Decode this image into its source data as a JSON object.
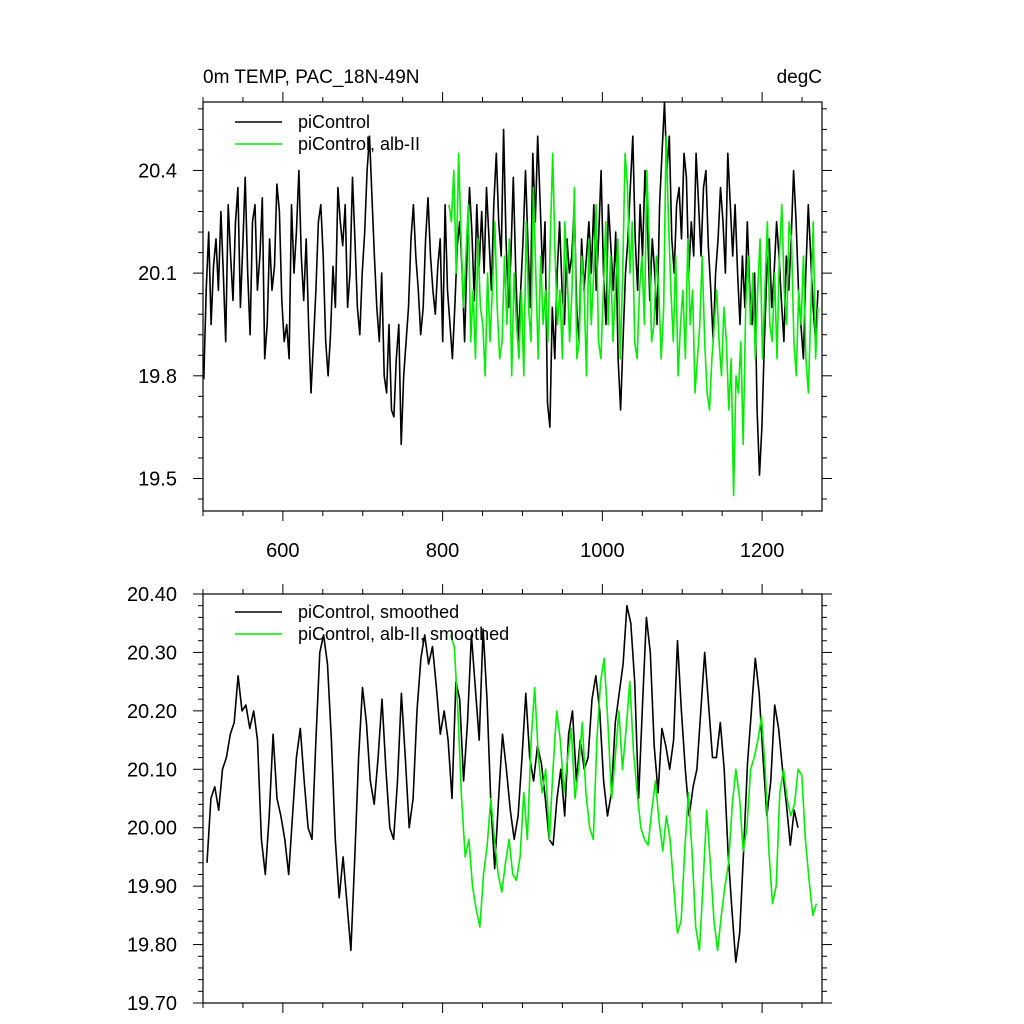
{
  "chart_data": [
    {
      "type": "line",
      "title": "0m TEMP, PAC_18N-49N",
      "units": "degC",
      "xlim": [
        500,
        1275
      ],
      "ylim": [
        19.405,
        20.6
      ],
      "xticks": [
        600,
        800,
        1000,
        1200
      ],
      "xtick_labels": [
        "600",
        "800",
        "1000",
        "1200"
      ],
      "yticks": [
        19.5,
        19.8,
        20.1,
        20.4
      ],
      "ytick_labels": [
        "19.5",
        "19.8",
        "20.1",
        "20.4"
      ],
      "legend_position": "top-left",
      "grid": false,
      "series": [
        {
          "name": "piControl",
          "color": "#000000",
          "x_range": [
            501,
            1270
          ],
          "values": [
            19.79,
            20.05,
            20.22,
            19.95,
            20.12,
            20.2,
            20.05,
            20.28,
            20.1,
            19.9,
            20.3,
            20.15,
            20.02,
            20.25,
            20.35,
            20.0,
            20.18,
            20.38,
            20.1,
            19.92,
            20.25,
            20.3,
            20.05,
            20.15,
            20.32,
            19.85,
            19.95,
            20.2,
            20.05,
            20.12,
            20.36,
            20.28,
            20.02,
            19.9,
            19.95,
            19.85,
            20.3,
            20.1,
            20.22,
            20.4,
            20.15,
            20.02,
            20.2,
            19.95,
            19.75,
            19.9,
            20.05,
            20.25,
            20.3,
            20.15,
            19.9,
            19.8,
            19.92,
            20.12,
            20.0,
            20.35,
            20.25,
            20.18,
            20.3,
            20.0,
            20.1,
            20.38,
            20.2,
            20.0,
            19.92,
            20.1,
            20.22,
            20.4,
            20.5,
            20.32,
            20.15,
            20.0,
            19.9,
            20.1,
            19.8,
            19.75,
            19.95,
            19.7,
            19.68,
            19.85,
            19.95,
            19.6,
            19.8,
            19.9,
            20.0,
            20.2,
            20.3,
            20.15,
            20.05,
            19.92,
            20.0,
            20.2,
            20.32,
            20.15,
            20.05,
            19.98,
            20.12,
            20.2,
            19.9,
            20.3,
            20.05,
            19.95,
            19.85,
            20.0,
            20.18,
            20.25,
            20.1,
            19.9,
            20.15,
            20.35,
            20.22,
            20.02,
            20.3,
            20.12,
            20.28,
            20.1,
            20.35,
            20.2,
            20.05,
            20.3,
            20.45,
            20.25,
            20.15,
            20.52,
            20.2,
            20.0,
            20.15,
            20.38,
            20.1,
            19.9,
            20.05,
            20.2,
            20.4,
            20.18,
            20.0,
            20.45,
            20.25,
            20.5,
            20.3,
            20.1,
            20.25,
            19.72,
            19.65,
            20.0,
            19.85,
            20.1,
            20.25,
            20.05,
            19.95,
            20.2,
            20.1,
            20.15,
            20.3,
            20.0,
            19.9,
            20.2,
            20.05,
            20.15,
            20.25,
            20.1,
            20.3,
            20.05,
            20.2,
            20.4,
            20.1,
            19.95,
            20.3,
            20.18,
            20.05,
            20.22,
            19.85,
            19.7,
            19.9,
            20.1,
            20.2,
            20.35,
            20.5,
            20.2,
            20.05,
            20.3,
            20.15,
            20.4,
            20.25,
            20.02,
            20.2,
            20.1,
            19.95,
            20.3,
            20.45,
            20.6,
            20.4,
            20.5,
            20.2,
            20.1,
            20.3,
            20.35,
            20.2,
            20.45,
            20.38,
            20.1,
            20.25,
            20.15,
            20.45,
            20.3,
            20.15,
            20.35,
            20.4,
            20.18,
            20.05,
            19.9,
            20.1,
            20.2,
            20.35,
            20.25,
            20.1,
            20.45,
            20.3,
            20.15,
            20.3,
            20.1,
            19.95,
            20.15,
            20.0,
            20.25,
            20.05,
            19.95,
            20.1,
            19.7,
            19.51,
            19.65,
            19.9,
            20.1,
            20.2,
            20.0,
            20.1,
            20.25,
            20.15,
            20.02,
            19.9,
            20.15,
            20.05,
            20.2,
            20.4,
            20.25,
            20.05,
            19.95,
            19.85,
            20.1,
            20.3,
            20.15,
            20.0,
            19.9,
            20.05
          ]
        },
        {
          "name": "piControl, alb-II",
          "color": "#00ee00",
          "x_range": [
            808,
            1270
          ],
          "values": [
            20.3,
            20.25,
            20.4,
            20.1,
            20.45,
            20.2,
            20.0,
            20.15,
            20.3,
            19.9,
            20.05,
            19.85,
            20.2,
            20.0,
            19.95,
            19.8,
            20.1,
            19.9,
            20.05,
            20.25,
            20.0,
            19.85,
            19.9,
            20.15,
            19.95,
            20.2,
            19.8,
            20.1,
            19.95,
            19.85,
            20.05,
            19.8,
            20.25,
            20.0,
            19.9,
            20.35,
            20.1,
            19.85,
            20.15,
            19.95,
            20.05,
            19.9,
            20.2,
            20.45,
            20.15,
            19.95,
            20.05,
            19.85,
            20.25,
            20.1,
            19.9,
            20.05,
            20.35,
            19.85,
            19.9,
            20.15,
            20.05,
            19.8,
            20.2,
            19.95,
            20.1,
            20.3,
            19.9,
            19.85,
            20.05,
            20.25,
            19.95,
            20.15,
            19.9,
            20.05,
            20.2,
            19.85,
            20.1,
            20.45,
            20.35,
            20.1,
            20.25,
            19.9,
            19.85,
            20.05,
            20.15,
            19.95,
            20.4,
            20.2,
            19.9,
            19.95,
            20.15,
            20.05,
            19.85,
            20.0,
            20.5,
            20.25,
            20.05,
            19.9,
            20.15,
            19.8,
            19.95,
            20.05,
            19.85,
            20.2,
            19.95,
            20.05,
            19.75,
            19.85,
            19.95,
            20.15,
            19.9,
            19.75,
            19.7,
            19.85,
            19.95,
            20.05,
            19.9,
            19.8,
            20.0,
            19.9,
            19.7,
            19.85,
            19.45,
            19.8,
            19.75,
            19.9,
            19.6,
            20.0,
            20.15,
            19.95,
            20.1,
            19.85,
            20.05,
            20.2,
            19.85,
            20.05,
            20.25,
            19.95,
            19.9,
            20.1,
            19.85,
            20.15,
            20.3,
            20.05,
            19.95,
            20.25,
            20.2,
            19.9,
            19.8,
            20.05,
            19.95,
            20.15,
            19.85,
            19.75,
            20.0,
            20.25,
            19.85,
            20.0
          ]
        }
      ]
    },
    {
      "type": "line",
      "xlim": [
        500,
        1275
      ],
      "ylim": [
        19.7,
        20.4
      ],
      "yticks": [
        19.7,
        19.8,
        19.9,
        20.0,
        20.1,
        20.2,
        20.3,
        20.4
      ],
      "ytick_labels": [
        "19.70",
        "19.80",
        "19.90",
        "20.00",
        "20.10",
        "20.20",
        "20.30",
        "20.40"
      ],
      "xticks": [
        600,
        800,
        1000,
        1200
      ],
      "legend_position": "top-left",
      "grid": false,
      "series": [
        {
          "name": "piControl, smoothed",
          "color": "#000000",
          "x_range": [
            505,
            1245
          ],
          "values": [
            19.94,
            20.05,
            20.07,
            20.03,
            20.1,
            20.12,
            20.16,
            20.18,
            20.26,
            20.2,
            20.21,
            20.17,
            20.2,
            20.15,
            19.98,
            19.92,
            20.02,
            20.16,
            20.05,
            20.02,
            19.98,
            19.92,
            20.02,
            20.12,
            20.17,
            20.08,
            20.0,
            19.98,
            20.15,
            20.3,
            20.33,
            20.28,
            20.15,
            19.98,
            19.88,
            19.95,
            19.87,
            19.79,
            19.95,
            20.12,
            20.24,
            20.18,
            20.08,
            20.04,
            20.12,
            20.22,
            20.1,
            20.0,
            19.98,
            20.08,
            20.23,
            20.12,
            20.0,
            20.05,
            20.2,
            20.29,
            20.33,
            20.28,
            20.31,
            20.24,
            20.16,
            20.2,
            20.15,
            20.05,
            20.25,
            20.22,
            20.08,
            20.18,
            20.33,
            20.24,
            20.15,
            20.34,
            20.22,
            20.04,
            19.93,
            20.05,
            20.16,
            20.1,
            20.03,
            19.98,
            20.02,
            20.12,
            20.23,
            20.12,
            20.08,
            20.14,
            20.11,
            20.05,
            19.98,
            19.97,
            20.05,
            20.1,
            20.02,
            20.16,
            20.2,
            20.08,
            20.15,
            20.1,
            20.12,
            20.22,
            20.26,
            20.2,
            20.08,
            20.02,
            20.06,
            20.18,
            20.23,
            20.28,
            20.38,
            20.35,
            20.25,
            20.05,
            20.21,
            20.36,
            20.3,
            20.14,
            20.06,
            20.17,
            20.14,
            20.1,
            20.15,
            20.32,
            20.2,
            20.1,
            20.02,
            20.07,
            20.1,
            20.2,
            20.3,
            20.21,
            20.12,
            20.12,
            20.18,
            20.1,
            19.96,
            19.86,
            19.77,
            19.82,
            19.96,
            20.11,
            20.2,
            20.29,
            20.23,
            20.12,
            20.02,
            20.08,
            20.21,
            20.17,
            20.1,
            20.04,
            19.97,
            20.03,
            20.0
          ]
        },
        {
          "name": "piControl, alb-II, smoothed",
          "color": "#00ee00",
          "x_range": [
            810,
            1268
          ],
          "values": [
            20.33,
            20.31,
            20.2,
            20.05,
            19.95,
            19.98,
            19.9,
            19.86,
            19.83,
            19.92,
            19.97,
            20.05,
            19.98,
            19.92,
            19.89,
            19.94,
            19.98,
            19.92,
            19.91,
            19.95,
            20.06,
            19.98,
            20.15,
            20.24,
            20.12,
            20.06,
            20.1,
            19.98,
            20.1,
            20.2,
            20.15,
            20.06,
            20.12,
            20.17,
            20.05,
            20.1,
            20.18,
            20.06,
            20.0,
            19.98,
            20.15,
            20.25,
            20.29,
            20.18,
            20.05,
            20.12,
            20.2,
            20.1,
            20.17,
            20.25,
            20.13,
            20.06,
            20.0,
            19.98,
            19.97,
            20.03,
            20.08,
            20.01,
            19.96,
            20.02,
            19.98,
            19.9,
            19.82,
            19.84,
            19.96,
            20.06,
            19.96,
            19.83,
            19.79,
            19.9,
            20.03,
            19.94,
            19.84,
            19.79,
            19.85,
            19.9,
            19.94,
            20.04,
            20.1,
            20.05,
            19.96,
            20.0,
            20.1,
            20.12,
            20.15,
            20.19,
            20.1,
            19.96,
            19.87,
            19.9,
            20.06,
            20.1,
            20.05,
            20.02,
            20.04,
            20.1,
            20.09,
            19.98,
            19.91,
            19.85,
            19.87
          ]
        }
      ]
    }
  ]
}
